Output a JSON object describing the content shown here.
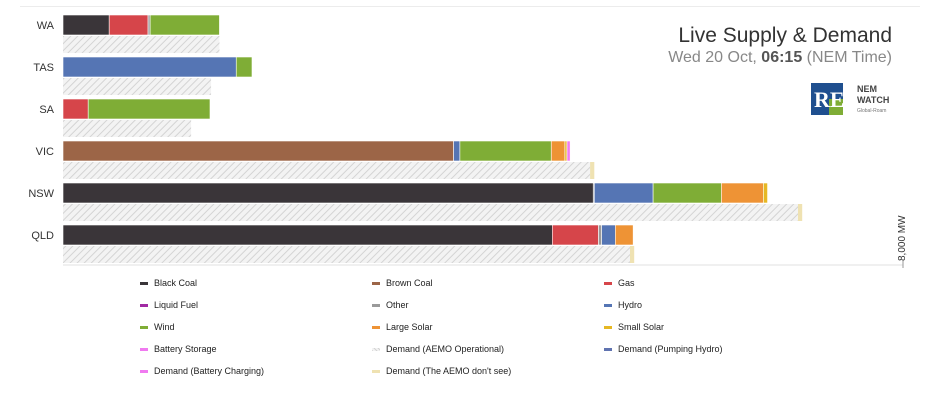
{
  "header": {
    "title": "Live Supply & Demand",
    "subtitle_prefix": "Wed 20 Oct, ",
    "subtitle_time": "06:15",
    "subtitle_suffix": " (NEM Time)"
  },
  "logos": {
    "rne_text": "RE",
    "nem_line1": "NEM",
    "nem_line2": "WATCH",
    "nem_line3": "Global-Roam"
  },
  "colors": {
    "Black Coal": "#3a3539",
    "Brown Coal": "#9c6547",
    "Gas": "#d6454a",
    "Liquid Fuel": "#a12aa3",
    "Other": "#9a9a9a",
    "Hydro": "#5575b4",
    "Wind": "#7fad36",
    "Large Solar": "#ee9335",
    "Small Solar": "#e6b824",
    "Battery Storage": "#f07af0",
    "Demand (AEMO Operational)": "#e0e0e0",
    "Demand (Pumping Hydro)": "#6073b0",
    "Demand (Battery Charging)": "#f07af0",
    "Demand (The AEMO don't see)": "#efe2b2"
  },
  "chart_data": {
    "type": "bar",
    "orientation": "horizontal",
    "stacked": true,
    "categories": [
      "WA",
      "TAS",
      "SA",
      "VIC",
      "NSW",
      "QLD"
    ],
    "xlim": [
      0,
      8000
    ],
    "x_axis_label": "8,000 MW",
    "supply_series": [
      {
        "name": "Black Coal",
        "values": [
          440,
          0,
          0,
          0,
          5050,
          4660
        ]
      },
      {
        "name": "Brown Coal",
        "values": [
          0,
          0,
          0,
          3720,
          0,
          0
        ]
      },
      {
        "name": "Gas",
        "values": [
          370,
          0,
          240,
          0,
          0,
          440
        ]
      },
      {
        "name": "Liquid Fuel",
        "values": [
          0,
          0,
          0,
          0,
          0,
          0
        ]
      },
      {
        "name": "Other",
        "values": [
          20,
          0,
          0,
          0,
          10,
          30
        ]
      },
      {
        "name": "Hydro",
        "values": [
          0,
          1650,
          0,
          60,
          560,
          130
        ]
      },
      {
        "name": "Wind",
        "values": [
          660,
          150,
          1160,
          870,
          650,
          0
        ]
      },
      {
        "name": "Large Solar",
        "values": [
          0,
          0,
          0,
          130,
          400,
          170
        ]
      },
      {
        "name": "Small Solar",
        "values": [
          0,
          0,
          0,
          20,
          40,
          0
        ]
      },
      {
        "name": "Battery Storage",
        "values": [
          0,
          0,
          0,
          30,
          0,
          0
        ]
      }
    ],
    "demand_series": [
      {
        "name": "Demand (AEMO Operational)",
        "values": [
          1490,
          1410,
          1220,
          5020,
          7000,
          5400
        ]
      },
      {
        "name": "Demand (Pumping Hydro)",
        "values": [
          0,
          0,
          0,
          0,
          0,
          0
        ]
      },
      {
        "name": "Demand (Battery Charging)",
        "values": [
          0,
          0,
          0,
          0,
          0,
          0
        ]
      },
      {
        "name": "Demand (The AEMO don't see)",
        "values": [
          0,
          0,
          0,
          40,
          40,
          40
        ]
      }
    ],
    "legend": [
      "Black Coal",
      "Brown Coal",
      "Gas",
      "Liquid Fuel",
      "Other",
      "Hydro",
      "Wind",
      "Large Solar",
      "Small Solar",
      "Battery Storage",
      "Demand (AEMO Operational)",
      "Demand (Pumping Hydro)",
      "Demand (Battery Charging)",
      "Demand (The AEMO don't see)"
    ],
    "legend_placement": "bottom"
  }
}
